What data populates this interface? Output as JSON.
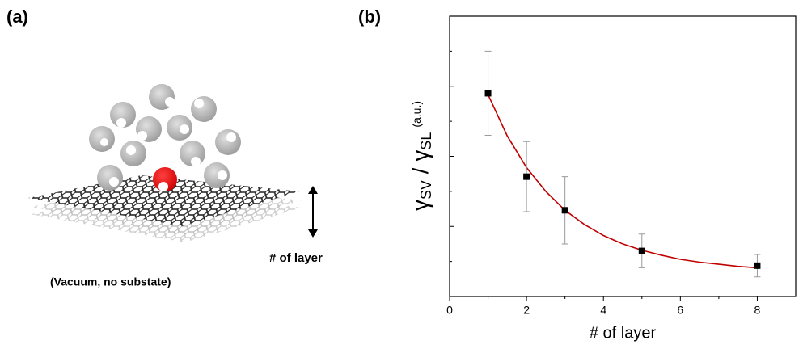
{
  "panel_a": {
    "label": "(a)",
    "layer_label": "# of layer",
    "caption": "(Vacuum, no substate)"
  },
  "chart_data": {
    "type": "scatter",
    "panel_label": "(b)",
    "xlabel": "# of layer",
    "ylabel": {
      "main1": "γ",
      "sub1": "SV",
      "main2": " / γ",
      "sub2": "SL",
      "unit": "(a.u.)"
    },
    "x": [
      1,
      2,
      3,
      5,
      8
    ],
    "values": [
      2.9,
      1.71,
      1.23,
      0.65,
      0.44
    ],
    "errors": [
      0.6,
      0.5,
      0.48,
      0.24,
      0.16
    ],
    "color": "#000000",
    "error_color": "#999999",
    "fit": {
      "color": "#c00000",
      "x": [
        1,
        1.5,
        2,
        2.5,
        3,
        3.5,
        4,
        4.5,
        5,
        5.5,
        6,
        6.5,
        7,
        7.5,
        8
      ],
      "values": [
        2.88,
        2.29,
        1.84,
        1.5,
        1.23,
        1.03,
        0.87,
        0.75,
        0.66,
        0.59,
        0.53,
        0.49,
        0.46,
        0.43,
        0.41
      ]
    },
    "xlim": [
      0,
      9
    ],
    "xticks": [
      0,
      2,
      4,
      6,
      8
    ],
    "xminorticks": [
      1,
      3,
      5,
      7
    ],
    "ylim": [
      0,
      4
    ],
    "yticks": [
      1,
      2,
      3,
      4
    ],
    "yminorticks": [
      0.5,
      1.5,
      2.5,
      3.5
    ]
  }
}
